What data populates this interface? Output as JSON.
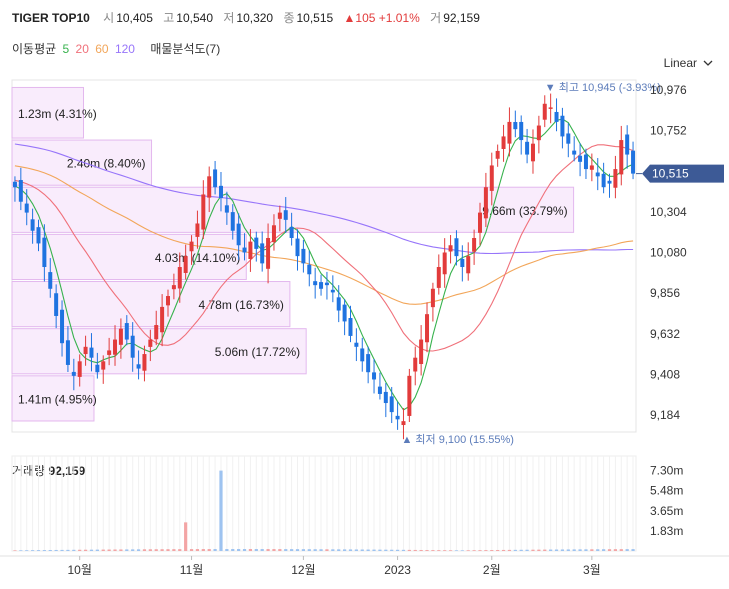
{
  "header": {
    "name": "TIGER TOP10",
    "open_label": "시",
    "open": "10,405",
    "high_label": "고",
    "high": "10,540",
    "low_label": "저",
    "low": "10,320",
    "close_label": "종",
    "close": "10,515",
    "change": "▲105 +1.01%",
    "volume_label": "거",
    "volume": "92,159"
  },
  "ma": {
    "label": "이동평균",
    "p5": "5",
    "p20": "20",
    "p60": "60",
    "p120": "120",
    "volume_profile": "매물분석도(7)"
  },
  "scale_label": "Linear",
  "colors": {
    "up": "#e23b3b",
    "down": "#1f73e0",
    "ma5": "#37b24d",
    "ma20": "#f0707a",
    "ma60": "#f2a65a",
    "ma120": "#9775fa",
    "price_tag": "#3d5a96"
  },
  "volume_title": {
    "label": "거래량",
    "value": "92,159"
  },
  "chart_data": {
    "type": "candlestick",
    "y_ticks": [
      "10,976",
      "10,752",
      "10,515",
      "10,304",
      "10,080",
      "9,856",
      "9,632",
      "9,408",
      "9,184"
    ],
    "y_tick_values": [
      10976,
      10752,
      10515,
      10304,
      10080,
      9856,
      9632,
      9408,
      9184
    ],
    "x_ticks": [
      "10월",
      "11월",
      "12월",
      "2023",
      "2월",
      "3월"
    ],
    "x_tick_index": [
      11,
      30,
      49,
      65,
      81,
      98
    ],
    "current_price": "10,515",
    "high_marker": {
      "text": "▼ 최고 10,945 (-3.93%)",
      "index": 90,
      "value": 10945
    },
    "low_marker": {
      "text": "▲ 최저 9,100 (15.55%)",
      "index": 66,
      "value": 9100
    },
    "volume_ticks": [
      "7.30m",
      "5.48m",
      "3.65m",
      "1.83m"
    ],
    "volume_tick_values": [
      7.3,
      5.48,
      3.65,
      1.83
    ],
    "volume_profile": [
      {
        "text": "1.23m (4.31%)",
        "from": 10700,
        "to": 10990,
        "volume": 1.23
      },
      {
        "text": "2.40m (8.40%)",
        "from": 10440,
        "to": 10700,
        "volume": 2.4
      },
      {
        "text": "9.66m (33.79%)",
        "from": 10180,
        "to": 10440,
        "volume": 9.66
      },
      {
        "text": "4.03m (14.10%)",
        "from": 9920,
        "to": 10180,
        "volume": 4.03
      },
      {
        "text": "4.78m (16.73%)",
        "from": 9660,
        "to": 9920,
        "volume": 4.78
      },
      {
        "text": "5.06m (17.72%)",
        "from": 9400,
        "to": 9660,
        "volume": 5.06
      },
      {
        "text": "1.41m (4.95%)",
        "from": 9140,
        "to": 9400,
        "volume": 1.41
      }
    ],
    "close": [
      10440,
      10360,
      10300,
      10200,
      10130,
      10000,
      9880,
      9730,
      9580,
      9460,
      9400,
      9480,
      9560,
      9500,
      9420,
      9480,
      9540,
      9600,
      9660,
      9600,
      9500,
      9440,
      9520,
      9600,
      9680,
      9780,
      9840,
      9900,
      10000,
      10060,
      10140,
      10240,
      10400,
      10500,
      10440,
      10380,
      10300,
      10200,
      10120,
      10080,
      10140,
      10100,
      10020,
      10160,
      10230,
      10300,
      10260,
      10160,
      10060,
      10020,
      9960,
      9900,
      9880,
      9900,
      9860,
      9760,
      9700,
      9620,
      9560,
      9480,
      9420,
      9380,
      9300,
      9250,
      9200,
      9160,
      9150,
      9400,
      9500,
      9600,
      9740,
      9880,
      10000,
      10080,
      10120,
      10060,
      10000,
      10060,
      10160,
      10300,
      10440,
      10560,
      10640,
      10720,
      10800,
      10760,
      10700,
      10620,
      10680,
      10780,
      10900,
      10880,
      10800,
      10720,
      10680,
      10620,
      10580,
      10540,
      10560,
      10500,
      10440,
      10460,
      10540,
      10700,
      10620,
      10515
    ]
  }
}
